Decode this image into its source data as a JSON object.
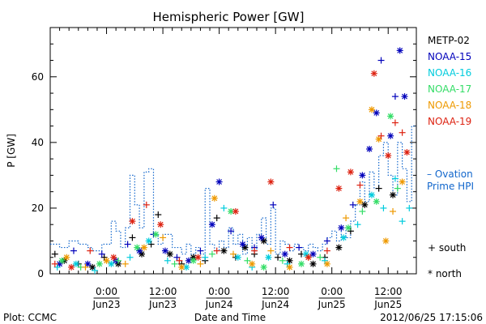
{
  "chart_data": {
    "type": "scatter",
    "title": "Hemispheric Power [GW]",
    "ylabel": "P [GW]",
    "xlabel": "Date and Time",
    "ylim": [
      0,
      75
    ],
    "yticks": [
      0,
      20,
      40,
      60
    ],
    "x_unit": "hours since 2012-06-22 12:00",
    "xlim": [
      0,
      78
    ],
    "xticks": [
      {
        "x": 12,
        "time": "0:00",
        "date": "Jun23"
      },
      {
        "x": 24,
        "time": "12:00",
        "date": "Jun23"
      },
      {
        "x": 36,
        "time": "0:00",
        "date": "Jun24"
      },
      {
        "x": 48,
        "time": "12:00",
        "date": "Jun24"
      },
      {
        "x": 60,
        "time": "0:00",
        "date": "Jun25"
      },
      {
        "x": 72,
        "time": "12:00",
        "date": "Jun25"
      }
    ],
    "series": [
      {
        "name": "METP-02",
        "color": "#000000",
        "points": [
          {
            "x": 1.0,
            "y": 6,
            "m": "+"
          },
          {
            "x": 3.0,
            "y": 4,
            "m": "*"
          },
          {
            "x": 6.0,
            "y": 3,
            "m": "+"
          },
          {
            "x": 9.0,
            "y": 2,
            "m": "*"
          },
          {
            "x": 11.5,
            "y": 5,
            "m": "+"
          },
          {
            "x": 14.5,
            "y": 3,
            "m": "*"
          },
          {
            "x": 17.5,
            "y": 11,
            "m": "+"
          },
          {
            "x": 19.5,
            "y": 6,
            "m": "*"
          },
          {
            "x": 21.5,
            "y": 9,
            "m": "+"
          },
          {
            "x": 23.0,
            "y": 18,
            "m": "+"
          },
          {
            "x": 25.5,
            "y": 6,
            "m": "*"
          },
          {
            "x": 28.0,
            "y": 3,
            "m": "+"
          },
          {
            "x": 30.5,
            "y": 5,
            "m": "*"
          },
          {
            "x": 33.0,
            "y": 4,
            "m": "+"
          },
          {
            "x": 35.5,
            "y": 17,
            "m": "+"
          },
          {
            "x": 37.0,
            "y": 7,
            "m": "*"
          },
          {
            "x": 39.5,
            "y": 5,
            "m": "+"
          },
          {
            "x": 41.5,
            "y": 8,
            "m": "*"
          },
          {
            "x": 43.5,
            "y": 6,
            "m": "+"
          },
          {
            "x": 45.5,
            "y": 10,
            "m": "*"
          },
          {
            "x": 48.5,
            "y": 5,
            "m": "+"
          },
          {
            "x": 51.0,
            "y": 4,
            "m": "*"
          },
          {
            "x": 53.5,
            "y": 6,
            "m": "+"
          },
          {
            "x": 56.0,
            "y": 3,
            "m": "*"
          },
          {
            "x": 58.5,
            "y": 5,
            "m": "+"
          },
          {
            "x": 61.5,
            "y": 8,
            "m": "*"
          },
          {
            "x": 64.0,
            "y": 13,
            "m": "+"
          },
          {
            "x": 67.0,
            "y": 21,
            "m": "*"
          },
          {
            "x": 70.0,
            "y": 26,
            "m": "+"
          },
          {
            "x": 73.0,
            "y": 24,
            "m": "*"
          }
        ]
      },
      {
        "name": "NOAA-15",
        "color": "#0000bb",
        "points": [
          {
            "x": 2.0,
            "y": 3,
            "m": "*"
          },
          {
            "x": 5.0,
            "y": 7,
            "m": "+"
          },
          {
            "x": 8.0,
            "y": 3,
            "m": "*"
          },
          {
            "x": 11.0,
            "y": 6,
            "m": "+"
          },
          {
            "x": 14.0,
            "y": 4,
            "m": "*"
          },
          {
            "x": 16.5,
            "y": 9,
            "m": "+"
          },
          {
            "x": 19.0,
            "y": 7,
            "m": "*"
          },
          {
            "x": 22.0,
            "y": 12,
            "m": "+"
          },
          {
            "x": 24.5,
            "y": 7,
            "m": "*"
          },
          {
            "x": 27.0,
            "y": 5,
            "m": "+"
          },
          {
            "x": 29.5,
            "y": 4,
            "m": "*"
          },
          {
            "x": 32.0,
            "y": 7,
            "m": "+"
          },
          {
            "x": 34.5,
            "y": 15,
            "m": "*"
          },
          {
            "x": 36.0,
            "y": 28,
            "m": "*"
          },
          {
            "x": 38.5,
            "y": 13,
            "m": "+"
          },
          {
            "x": 41.0,
            "y": 9,
            "m": "*"
          },
          {
            "x": 43.5,
            "y": 8,
            "m": "+"
          },
          {
            "x": 45.0,
            "y": 11,
            "m": "*"
          },
          {
            "x": 47.5,
            "y": 21,
            "m": "+"
          },
          {
            "x": 50.0,
            "y": 6,
            "m": "*"
          },
          {
            "x": 53.0,
            "y": 8,
            "m": "+"
          },
          {
            "x": 56.0,
            "y": 6,
            "m": "*"
          },
          {
            "x": 59.0,
            "y": 10,
            "m": "+"
          },
          {
            "x": 62.0,
            "y": 14,
            "m": "*"
          },
          {
            "x": 64.5,
            "y": 21,
            "m": "+"
          },
          {
            "x": 66.5,
            "y": 30,
            "m": "*"
          },
          {
            "x": 68.0,
            "y": 38,
            "m": "*"
          },
          {
            "x": 69.5,
            "y": 49,
            "m": "*"
          },
          {
            "x": 70.5,
            "y": 65,
            "m": "+"
          },
          {
            "x": 72.5,
            "y": 42,
            "m": "*"
          },
          {
            "x": 73.5,
            "y": 54,
            "m": "+"
          },
          {
            "x": 74.5,
            "y": 68,
            "m": "*"
          },
          {
            "x": 75.5,
            "y": 54,
            "m": "*"
          }
        ]
      },
      {
        "name": "NOAA-16",
        "color": "#00ccdd",
        "points": [
          {
            "x": 1.5,
            "y": 2,
            "m": "+"
          },
          {
            "x": 5.5,
            "y": 3,
            "m": "*"
          },
          {
            "x": 9.5,
            "y": 1,
            "m": "+"
          },
          {
            "x": 13.0,
            "y": 3,
            "m": "*"
          },
          {
            "x": 17.0,
            "y": 5,
            "m": "+"
          },
          {
            "x": 21.0,
            "y": 10,
            "m": "*"
          },
          {
            "x": 25.0,
            "y": 4,
            "m": "+"
          },
          {
            "x": 29.0,
            "y": 2,
            "m": "*"
          },
          {
            "x": 33.0,
            "y": 5,
            "m": "+"
          },
          {
            "x": 37.0,
            "y": 20,
            "m": "+"
          },
          {
            "x": 40.0,
            "y": 5,
            "m": "*"
          },
          {
            "x": 43.0,
            "y": 2,
            "m": "+"
          },
          {
            "x": 46.5,
            "y": 5,
            "m": "*"
          },
          {
            "x": 50.5,
            "y": 3,
            "m": "+"
          },
          {
            "x": 54.5,
            "y": 6,
            "m": "*"
          },
          {
            "x": 58.5,
            "y": 4,
            "m": "+"
          },
          {
            "x": 62.5,
            "y": 11,
            "m": "*"
          },
          {
            "x": 65.5,
            "y": 15,
            "m": "+"
          },
          {
            "x": 68.5,
            "y": 24,
            "m": "*"
          },
          {
            "x": 71.0,
            "y": 20,
            "m": "+"
          },
          {
            "x": 73.5,
            "y": 29,
            "m": "+"
          },
          {
            "x": 75.0,
            "y": 16,
            "m": "+"
          },
          {
            "x": 76.5,
            "y": 20,
            "m": "+"
          }
        ]
      },
      {
        "name": "NOAA-17",
        "color": "#33dd66",
        "points": [
          {
            "x": 2.5,
            "y": 4,
            "m": "*"
          },
          {
            "x": 6.5,
            "y": 2,
            "m": "+"
          },
          {
            "x": 10.5,
            "y": 3,
            "m": "*"
          },
          {
            "x": 14.5,
            "y": 4,
            "m": "+"
          },
          {
            "x": 18.5,
            "y": 8,
            "m": "*"
          },
          {
            "x": 22.5,
            "y": 12,
            "m": "*"
          },
          {
            "x": 26.5,
            "y": 3,
            "m": "+"
          },
          {
            "x": 30.5,
            "y": 4,
            "m": "*"
          },
          {
            "x": 34.5,
            "y": 6,
            "m": "+"
          },
          {
            "x": 38.5,
            "y": 19,
            "m": "*"
          },
          {
            "x": 42.0,
            "y": 4,
            "m": "+"
          },
          {
            "x": 45.5,
            "y": 2,
            "m": "*"
          },
          {
            "x": 49.5,
            "y": 4,
            "m": "+"
          },
          {
            "x": 53.5,
            "y": 3,
            "m": "*"
          },
          {
            "x": 57.5,
            "y": 5,
            "m": "+"
          },
          {
            "x": 61.0,
            "y": 32,
            "m": "+"
          },
          {
            "x": 63.5,
            "y": 14,
            "m": "*"
          },
          {
            "x": 66.5,
            "y": 19,
            "m": "+"
          },
          {
            "x": 69.5,
            "y": 22,
            "m": "*"
          },
          {
            "x": 72.5,
            "y": 48,
            "m": "*"
          },
          {
            "x": 74.0,
            "y": 26,
            "m": "+"
          }
        ]
      },
      {
        "name": "NOAA-18",
        "color": "#ee9900",
        "points": [
          {
            "x": 3.5,
            "y": 5,
            "m": "*"
          },
          {
            "x": 7.5,
            "y": 2,
            "m": "+"
          },
          {
            "x": 12.0,
            "y": 4,
            "m": "*"
          },
          {
            "x": 16.0,
            "y": 3,
            "m": "+"
          },
          {
            "x": 20.0,
            "y": 8,
            "m": "*"
          },
          {
            "x": 24.0,
            "y": 11,
            "m": "+"
          },
          {
            "x": 28.0,
            "y": 2,
            "m": "*"
          },
          {
            "x": 32.0,
            "y": 3,
            "m": "+"
          },
          {
            "x": 35.0,
            "y": 23,
            "m": "*"
          },
          {
            "x": 39.0,
            "y": 6,
            "m": "+"
          },
          {
            "x": 43.0,
            "y": 3,
            "m": "*"
          },
          {
            "x": 47.0,
            "y": 7,
            "m": "+"
          },
          {
            "x": 51.0,
            "y": 2,
            "m": "*"
          },
          {
            "x": 55.0,
            "y": 5,
            "m": "+"
          },
          {
            "x": 59.0,
            "y": 3,
            "m": "*"
          },
          {
            "x": 63.0,
            "y": 17,
            "m": "+"
          },
          {
            "x": 66.0,
            "y": 22,
            "m": "*"
          },
          {
            "x": 68.5,
            "y": 50,
            "m": "*"
          },
          {
            "x": 70.0,
            "y": 41,
            "m": "*"
          },
          {
            "x": 71.5,
            "y": 10,
            "m": "*"
          },
          {
            "x": 73.0,
            "y": 19,
            "m": "+"
          },
          {
            "x": 75.0,
            "y": 28,
            "m": "*"
          }
        ]
      },
      {
        "name": "NOAA-19",
        "color": "#dd2211",
        "points": [
          {
            "x": 1.0,
            "y": 3,
            "m": "+"
          },
          {
            "x": 4.5,
            "y": 2,
            "m": "*"
          },
          {
            "x": 8.5,
            "y": 7,
            "m": "+"
          },
          {
            "x": 13.5,
            "y": 5,
            "m": "*"
          },
          {
            "x": 17.5,
            "y": 16,
            "m": "*"
          },
          {
            "x": 20.5,
            "y": 21,
            "m": "+"
          },
          {
            "x": 23.5,
            "y": 15,
            "m": "*"
          },
          {
            "x": 27.5,
            "y": 4,
            "m": "+"
          },
          {
            "x": 31.5,
            "y": 5,
            "m": "*"
          },
          {
            "x": 35.5,
            "y": 7,
            "m": "+"
          },
          {
            "x": 39.5,
            "y": 19,
            "m": "*"
          },
          {
            "x": 43.5,
            "y": 7,
            "m": "+"
          },
          {
            "x": 47.0,
            "y": 28,
            "m": "*"
          },
          {
            "x": 51.0,
            "y": 8,
            "m": "+"
          },
          {
            "x": 55.0,
            "y": 5,
            "m": "*"
          },
          {
            "x": 59.0,
            "y": 7,
            "m": "+"
          },
          {
            "x": 61.5,
            "y": 26,
            "m": "*"
          },
          {
            "x": 64.0,
            "y": 31,
            "m": "*"
          },
          {
            "x": 66.0,
            "y": 27,
            "m": "+"
          },
          {
            "x": 69.0,
            "y": 61,
            "m": "*"
          },
          {
            "x": 70.5,
            "y": 42,
            "m": "+"
          },
          {
            "x": 72.0,
            "y": 36,
            "m": "*"
          },
          {
            "x": 73.5,
            "y": 46,
            "m": "+"
          },
          {
            "x": 75.0,
            "y": 43,
            "m": "+"
          },
          {
            "x": 76.0,
            "y": 37,
            "m": "*"
          }
        ]
      }
    ],
    "model_line": {
      "name": "Ovation Prime HPI",
      "legend_label": "– Ovation\nPrime HPI",
      "color": "#1166cc",
      "style": "dotted-step",
      "points": [
        [
          0,
          9
        ],
        [
          2,
          8
        ],
        [
          4,
          10
        ],
        [
          6,
          9
        ],
        [
          8,
          8
        ],
        [
          9,
          7
        ],
        [
          11,
          9
        ],
        [
          13,
          16
        ],
        [
          14,
          13
        ],
        [
          15,
          8
        ],
        [
          16,
          14
        ],
        [
          17,
          30
        ],
        [
          18,
          21
        ],
        [
          19,
          14
        ],
        [
          20,
          31
        ],
        [
          21,
          32
        ],
        [
          22,
          12
        ],
        [
          23,
          9
        ],
        [
          24,
          12
        ],
        [
          26,
          8
        ],
        [
          28,
          6
        ],
        [
          29,
          9
        ],
        [
          30,
          6
        ],
        [
          31,
          8
        ],
        [
          32,
          6
        ],
        [
          33,
          26
        ],
        [
          34,
          9
        ],
        [
          35,
          7
        ],
        [
          36,
          10
        ],
        [
          37,
          8
        ],
        [
          38,
          14
        ],
        [
          39,
          9
        ],
        [
          40,
          12
        ],
        [
          41,
          6
        ],
        [
          42,
          11
        ],
        [
          43,
          7
        ],
        [
          44,
          12
        ],
        [
          45,
          17
        ],
        [
          46,
          9
        ],
        [
          47,
          20
        ],
        [
          48,
          6
        ],
        [
          49,
          10
        ],
        [
          50,
          9
        ],
        [
          51,
          7
        ],
        [
          52,
          9
        ],
        [
          53,
          8
        ],
        [
          54,
          7
        ],
        [
          55,
          9
        ],
        [
          56,
          8
        ],
        [
          57,
          7
        ],
        [
          58,
          9
        ],
        [
          59,
          11
        ],
        [
          60,
          13
        ],
        [
          61,
          10
        ],
        [
          62,
          14
        ],
        [
          63,
          11
        ],
        [
          64,
          16
        ],
        [
          65,
          21
        ],
        [
          66,
          28
        ],
        [
          67,
          22
        ],
        [
          68,
          31
        ],
        [
          69,
          26
        ],
        [
          70,
          36
        ],
        [
          71,
          40
        ],
        [
          72,
          30
        ],
        [
          73,
          24
        ],
        [
          74,
          40
        ],
        [
          75,
          32
        ],
        [
          76,
          22
        ],
        [
          77,
          45
        ],
        [
          78,
          45
        ]
      ]
    },
    "markers_legend": [
      {
        "symbol": "+",
        "label": "south"
      },
      {
        "symbol": "*",
        "label": "north"
      }
    ]
  },
  "footer": {
    "left": "Plot: CCMC",
    "center": "Date and Time",
    "right": "2012/06/25 17:15:06"
  }
}
